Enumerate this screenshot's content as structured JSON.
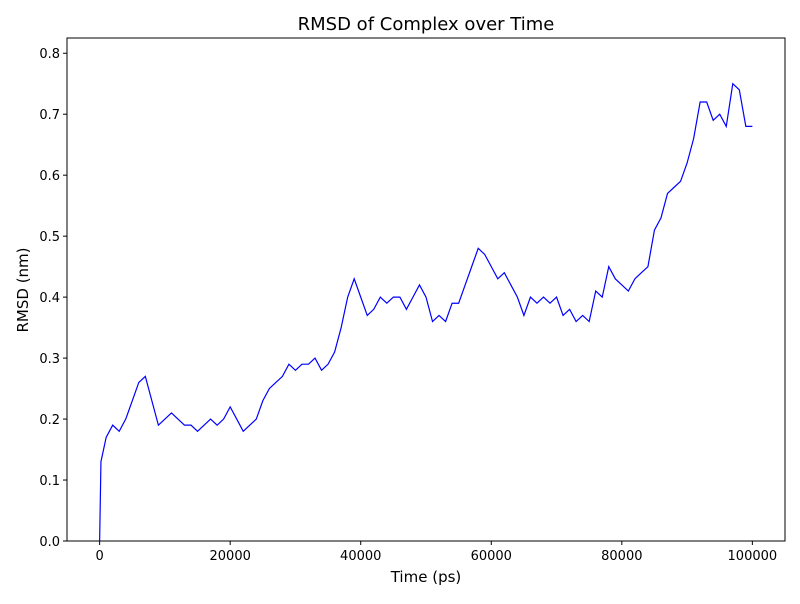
{
  "chart_data": {
    "type": "line",
    "title": "RMSD of Complex over Time",
    "x_label": "Time (ps)",
    "y_label": "RMSD (nm)",
    "x": [
      0,
      200,
      1000,
      2000,
      3000,
      4000,
      5000,
      6000,
      7000,
      8000,
      9000,
      10000,
      11000,
      12000,
      13000,
      14000,
      15000,
      16000,
      17000,
      18000,
      19000,
      20000,
      21000,
      22000,
      23000,
      24000,
      25000,
      26000,
      27000,
      28000,
      29000,
      30000,
      31000,
      32000,
      33000,
      34000,
      35000,
      36000,
      37000,
      38000,
      39000,
      40000,
      41000,
      42000,
      43000,
      44000,
      45000,
      46000,
      47000,
      48000,
      49000,
      50000,
      51000,
      52000,
      53000,
      54000,
      55000,
      56000,
      57000,
      58000,
      59000,
      60000,
      61000,
      62000,
      63000,
      64000,
      65000,
      66000,
      67000,
      68000,
      69000,
      70000,
      71000,
      72000,
      73000,
      74000,
      75000,
      76000,
      77000,
      78000,
      79000,
      80000,
      81000,
      82000,
      83000,
      84000,
      85000,
      86000,
      87000,
      88000,
      89000,
      90000,
      91000,
      92000,
      93000,
      94000,
      95000,
      96000,
      97000,
      98000,
      99000,
      100000
    ],
    "series": [
      {
        "name": "RMSD",
        "color": "#0000ff",
        "values": [
          0.0,
          0.13,
          0.17,
          0.19,
          0.18,
          0.2,
          0.23,
          0.26,
          0.27,
          0.23,
          0.19,
          0.2,
          0.21,
          0.2,
          0.19,
          0.19,
          0.18,
          0.19,
          0.2,
          0.19,
          0.2,
          0.22,
          0.2,
          0.18,
          0.19,
          0.2,
          0.23,
          0.25,
          0.26,
          0.27,
          0.29,
          0.28,
          0.29,
          0.29,
          0.3,
          0.28,
          0.29,
          0.31,
          0.35,
          0.4,
          0.43,
          0.4,
          0.37,
          0.38,
          0.4,
          0.39,
          0.4,
          0.4,
          0.38,
          0.4,
          0.42,
          0.4,
          0.36,
          0.37,
          0.36,
          0.39,
          0.39,
          0.42,
          0.45,
          0.48,
          0.47,
          0.45,
          0.43,
          0.44,
          0.42,
          0.4,
          0.37,
          0.4,
          0.39,
          0.4,
          0.39,
          0.4,
          0.37,
          0.38,
          0.36,
          0.37,
          0.36,
          0.41,
          0.4,
          0.45,
          0.43,
          0.42,
          0.41,
          0.43,
          0.44,
          0.45,
          0.51,
          0.53,
          0.57,
          0.58,
          0.59,
          0.62,
          0.66,
          0.72,
          0.72,
          0.69,
          0.7,
          0.68,
          0.75,
          0.74,
          0.68,
          0.68
        ]
      }
    ],
    "xlim": [
      -5000,
      105000
    ],
    "ylim": [
      0,
      0.825
    ],
    "xticks": [
      0,
      20000,
      40000,
      60000,
      80000,
      100000
    ],
    "yticks": [
      {
        "value": 0,
        "label": "0.0"
      },
      0.1,
      0.2,
      0.3,
      0.4,
      0.5,
      0.6,
      0.7,
      0.8
    ]
  }
}
